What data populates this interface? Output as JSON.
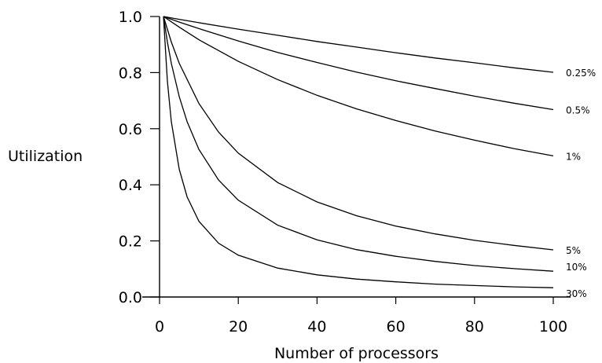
{
  "chart_data": {
    "type": "line",
    "title": "",
    "xlabel": "Number of processors",
    "ylabel": "Utilization",
    "xlim": [
      0,
      100
    ],
    "ylim": [
      0.0,
      1.0
    ],
    "x_ticks": [
      "0",
      "20",
      "40",
      "60",
      "80",
      "100"
    ],
    "y_ticks": [
      "0.0",
      "0.2",
      "0.4",
      "0.6",
      "0.8",
      "1.0"
    ],
    "grid": false,
    "legend": "inline-right",
    "series": [
      {
        "name": "0.25%",
        "x": [
          1,
          5,
          10,
          20,
          30,
          40,
          50,
          60,
          70,
          80,
          90,
          100
        ],
        "y": [
          1.0,
          0.99,
          0.978,
          0.955,
          0.933,
          0.911,
          0.891,
          0.871,
          0.852,
          0.835,
          0.817,
          0.801
        ]
      },
      {
        "name": "0.5%",
        "x": [
          1,
          5,
          10,
          20,
          30,
          40,
          50,
          60,
          70,
          80,
          90,
          100
        ],
        "y": [
          1.0,
          0.98,
          0.957,
          0.913,
          0.872,
          0.836,
          0.802,
          0.771,
          0.743,
          0.716,
          0.691,
          0.668
        ]
      },
      {
        "name": "1%",
        "x": [
          1,
          5,
          10,
          20,
          30,
          40,
          50,
          60,
          70,
          80,
          90,
          100
        ],
        "y": [
          1.0,
          0.962,
          0.917,
          0.84,
          0.775,
          0.719,
          0.671,
          0.629,
          0.592,
          0.559,
          0.529,
          0.503
        ]
      },
      {
        "name": "5%",
        "x": [
          1,
          3,
          5,
          10,
          15,
          20,
          30,
          40,
          50,
          60,
          70,
          80,
          90,
          100
        ],
        "y": [
          1.0,
          0.909,
          0.833,
          0.69,
          0.588,
          0.513,
          0.408,
          0.339,
          0.29,
          0.253,
          0.225,
          0.202,
          0.184,
          0.168
        ]
      },
      {
        "name": "10%",
        "x": [
          1,
          2,
          3,
          5,
          7,
          10,
          15,
          20,
          30,
          40,
          50,
          60,
          70,
          80,
          90,
          100
        ],
        "y": [
          1.0,
          0.909,
          0.833,
          0.714,
          0.625,
          0.526,
          0.417,
          0.345,
          0.256,
          0.204,
          0.169,
          0.145,
          0.127,
          0.112,
          0.101,
          0.092
        ]
      },
      {
        "name": "30%",
        "x": [
          1,
          2,
          3,
          5,
          7,
          10,
          15,
          20,
          30,
          40,
          50,
          60,
          70,
          80,
          90,
          100
        ],
        "y": [
          1.0,
          0.769,
          0.625,
          0.455,
          0.357,
          0.27,
          0.192,
          0.149,
          0.103,
          0.079,
          0.064,
          0.054,
          0.046,
          0.041,
          0.036,
          0.033
        ]
      }
    ]
  }
}
